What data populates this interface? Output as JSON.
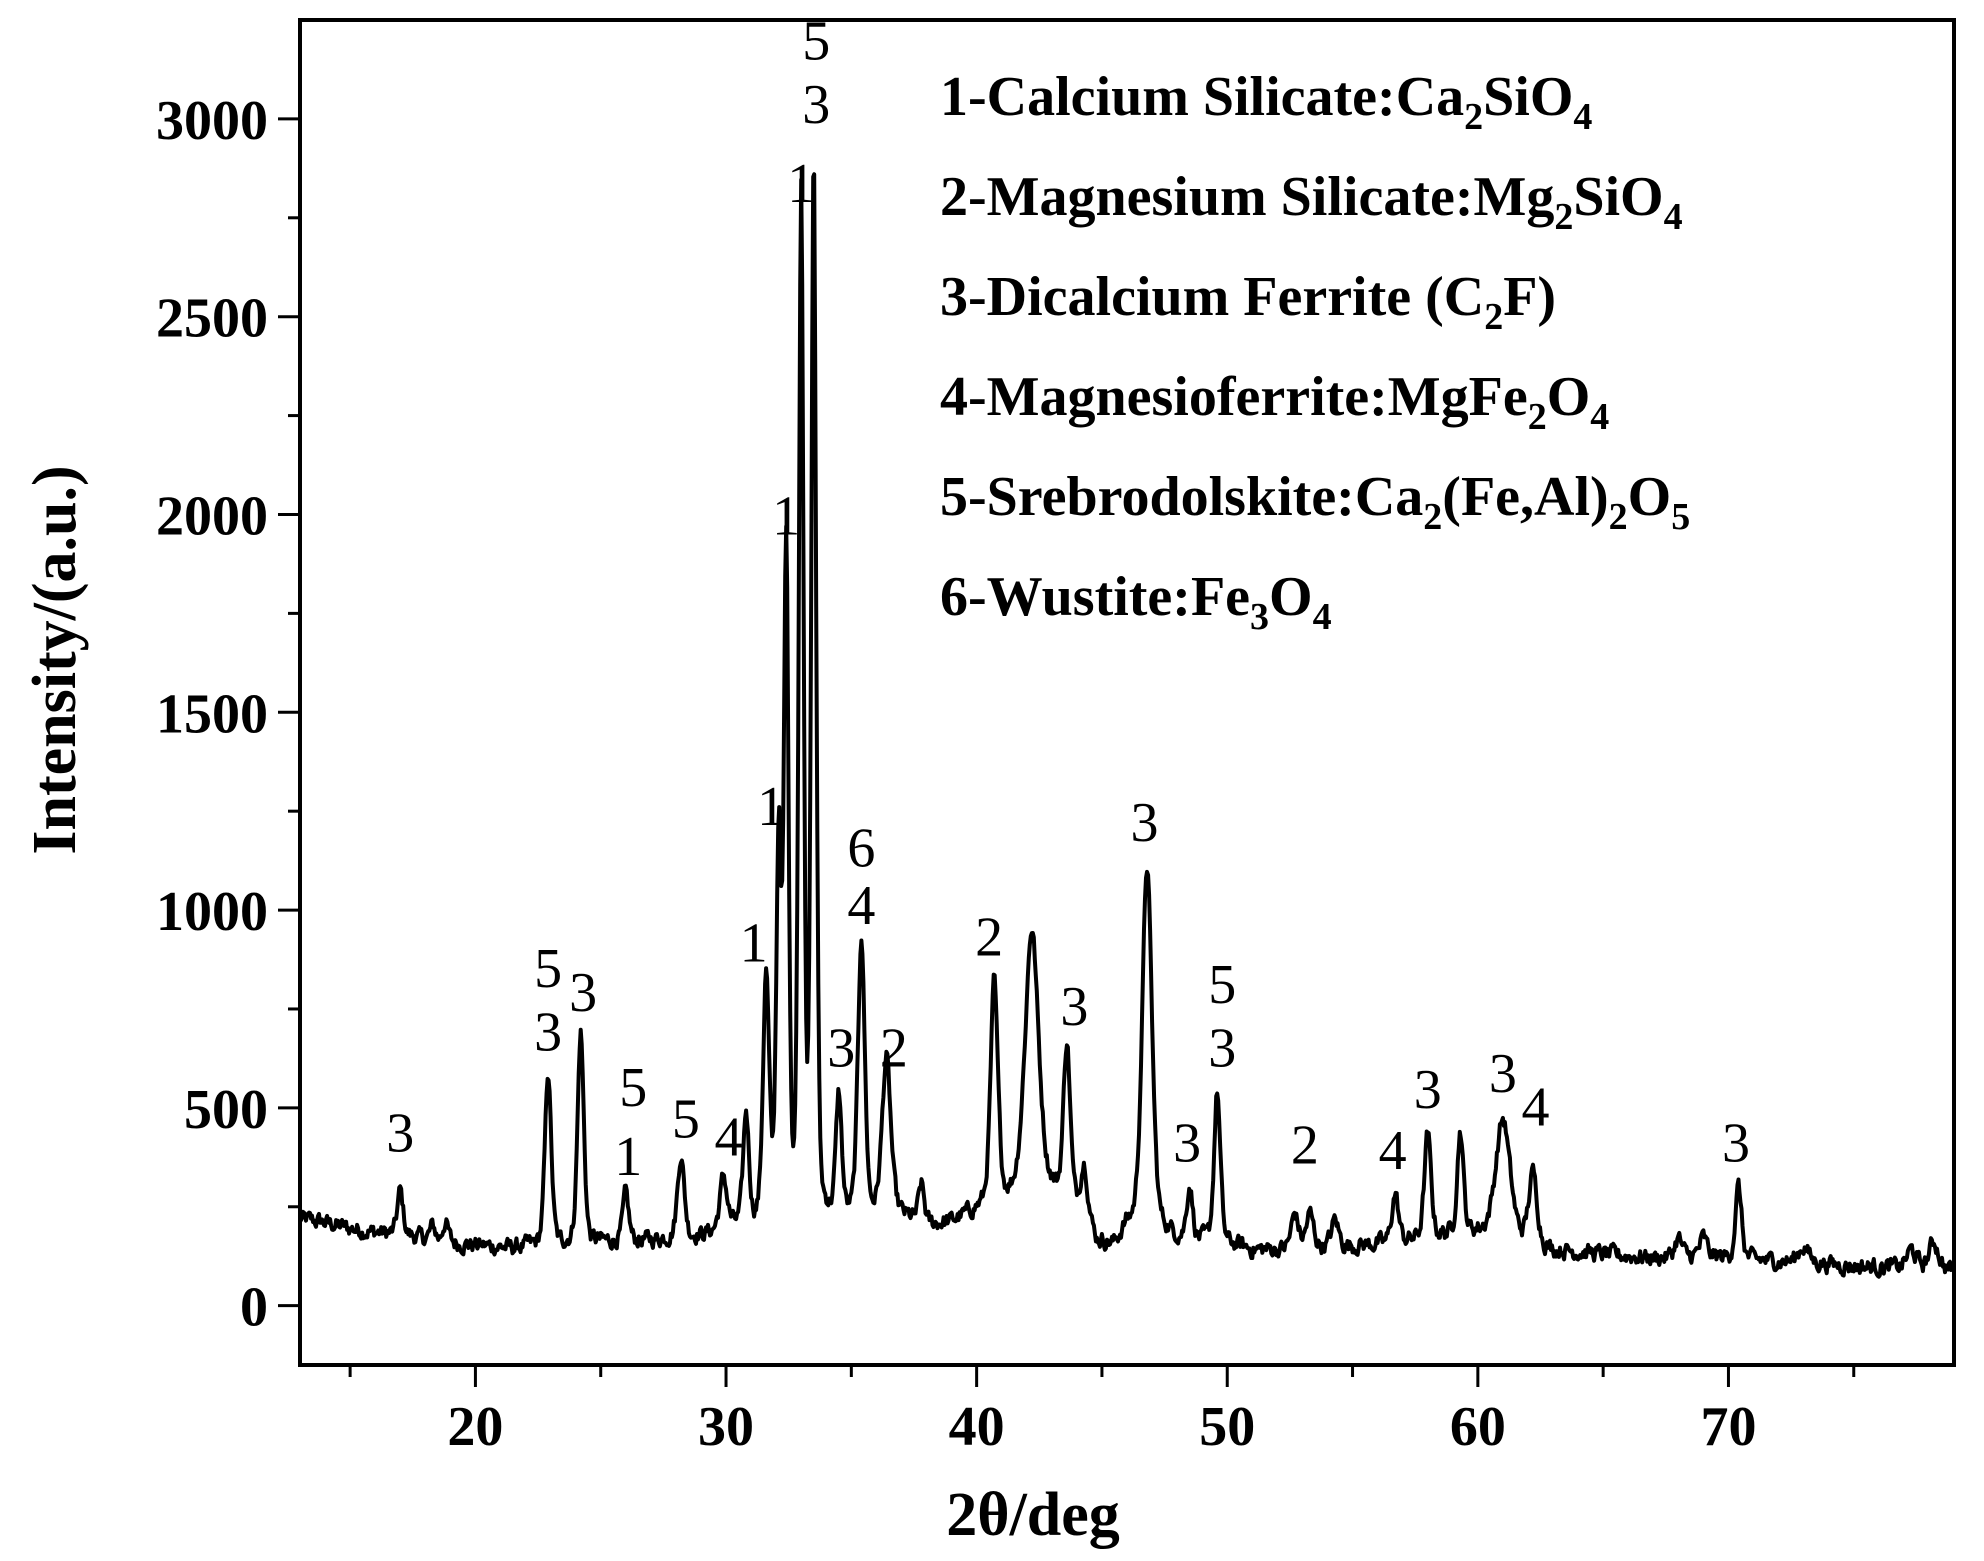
{
  "chart_data": {
    "type": "line",
    "xlabel": "2θ/deg",
    "ylabel": "Intensity/(a.u.)",
    "xlim": [
      13,
      79
    ],
    "ylim": [
      -150,
      3250
    ],
    "x_ticks": [
      20,
      30,
      40,
      50,
      60,
      70
    ],
    "y_ticks": [
      0,
      500,
      1000,
      1500,
      2000,
      2500,
      3000
    ],
    "grid": false,
    "legend_position": "top-right",
    "line_color": "#000000",
    "baseline_points": [
      [
        13.0,
        220
      ],
      [
        14.0,
        210
      ],
      [
        15.0,
        195
      ],
      [
        16.0,
        185
      ],
      [
        17.5,
        175
      ],
      [
        18.5,
        160
      ],
      [
        19.5,
        155
      ],
      [
        20.5,
        150
      ],
      [
        21.5,
        145
      ],
      [
        22.2,
        150
      ],
      [
        25.0,
        160
      ],
      [
        27.0,
        165
      ],
      [
        29.0,
        175
      ],
      [
        30.5,
        200
      ],
      [
        36.8,
        230
      ],
      [
        38.0,
        200
      ],
      [
        39.0,
        210
      ],
      [
        40.0,
        240
      ],
      [
        41.0,
        270
      ],
      [
        43.0,
        290
      ],
      [
        44.2,
        230
      ],
      [
        44.8,
        160
      ],
      [
        45.5,
        150
      ],
      [
        46.0,
        200
      ],
      [
        47.5,
        190
      ],
      [
        48.0,
        170
      ],
      [
        50.5,
        150
      ],
      [
        51.0,
        140
      ],
      [
        52.0,
        140
      ],
      [
        53.0,
        145
      ],
      [
        55.0,
        150
      ],
      [
        57.0,
        160
      ],
      [
        58.5,
        175
      ],
      [
        60.0,
        185
      ],
      [
        63.0,
        140
      ],
      [
        65.0,
        130
      ],
      [
        67.0,
        120
      ],
      [
        69.0,
        125
      ],
      [
        71.0,
        115
      ],
      [
        73.0,
        110
      ],
      [
        75.0,
        100
      ],
      [
        77.0,
        95
      ],
      [
        79.0,
        90
      ]
    ],
    "peaks": [
      {
        "x": 17.0,
        "y": 290,
        "w": 0.12
      },
      {
        "x": 18.3,
        "y": 200,
        "w": 0.12
      },
      {
        "x": 18.8,
        "y": 210,
        "w": 0.12
      },
      {
        "x": 22.9,
        "y": 590,
        "w": 0.13
      },
      {
        "x": 24.2,
        "y": 690,
        "w": 0.13
      },
      {
        "x": 26.0,
        "y": 280,
        "w": 0.12
      },
      {
        "x": 28.2,
        "y": 380,
        "w": 0.14
      },
      {
        "x": 29.9,
        "y": 320,
        "w": 0.15
      },
      {
        "x": 30.8,
        "y": 480,
        "w": 0.12
      },
      {
        "x": 31.6,
        "y": 820,
        "w": 0.13
      },
      {
        "x": 32.1,
        "y": 1160,
        "w": 0.1
      },
      {
        "x": 32.4,
        "y": 1900,
        "w": 0.1
      },
      {
        "x": 33.0,
        "y": 2790,
        "w": 0.1
      },
      {
        "x": 33.5,
        "y": 2880,
        "w": 0.1
      },
      {
        "x": 34.5,
        "y": 520,
        "w": 0.12
      },
      {
        "x": 35.4,
        "y": 930,
        "w": 0.14
      },
      {
        "x": 36.4,
        "y": 620,
        "w": 0.18
      },
      {
        "x": 37.8,
        "y": 300,
        "w": 0.12
      },
      {
        "x": 40.7,
        "y": 810,
        "w": 0.15
      },
      {
        "x": 42.2,
        "y": 950,
        "w": 0.28
      },
      {
        "x": 43.6,
        "y": 660,
        "w": 0.14
      },
      {
        "x": 44.3,
        "y": 350,
        "w": 0.15
      },
      {
        "x": 46.8,
        "y": 1110,
        "w": 0.2
      },
      {
        "x": 48.5,
        "y": 300,
        "w": 0.12
      },
      {
        "x": 49.6,
        "y": 540,
        "w": 0.13
      },
      {
        "x": 52.7,
        "y": 230,
        "w": 0.15
      },
      {
        "x": 53.3,
        "y": 230,
        "w": 0.15
      },
      {
        "x": 54.3,
        "y": 215,
        "w": 0.15
      },
      {
        "x": 56.7,
        "y": 280,
        "w": 0.14
      },
      {
        "x": 58.0,
        "y": 430,
        "w": 0.14
      },
      {
        "x": 59.3,
        "y": 440,
        "w": 0.13
      },
      {
        "x": 61.0,
        "y": 470,
        "w": 0.3
      },
      {
        "x": 62.2,
        "y": 330,
        "w": 0.18
      },
      {
        "x": 68.0,
        "y": 170,
        "w": 0.15
      },
      {
        "x": 69.0,
        "y": 170,
        "w": 0.15
      },
      {
        "x": 70.4,
        "y": 300,
        "w": 0.13
      },
      {
        "x": 73.0,
        "y": 150,
        "w": 0.2
      },
      {
        "x": 77.3,
        "y": 140,
        "w": 0.2
      },
      {
        "x": 78.2,
        "y": 160,
        "w": 0.2
      }
    ],
    "peak_labels": [
      {
        "text": "3",
        "x": 17.0,
        "y": 390
      },
      {
        "text": "5",
        "x": 22.9,
        "y": 805
      },
      {
        "text": "3",
        "x": 22.9,
        "y": 645
      },
      {
        "text": "3",
        "x": 24.3,
        "y": 745
      },
      {
        "text": "5",
        "x": 26.3,
        "y": 505
      },
      {
        "text": "1",
        "x": 26.1,
        "y": 330
      },
      {
        "text": "5",
        "x": 28.4,
        "y": 425
      },
      {
        "text": "4",
        "x": 30.1,
        "y": 380
      },
      {
        "text": "1",
        "x": 31.1,
        "y": 870
      },
      {
        "text": "1",
        "x": 31.8,
        "y": 1215
      },
      {
        "text": "1",
        "x": 32.4,
        "y": 1950
      },
      {
        "text": "1",
        "x": 33.0,
        "y": 2790
      },
      {
        "text": "3",
        "x": 33.6,
        "y": 2990
      },
      {
        "text": "5",
        "x": 33.6,
        "y": 3150
      },
      {
        "text": "3",
        "x": 34.6,
        "y": 605
      },
      {
        "text": "2",
        "x": 36.7,
        "y": 605
      },
      {
        "text": "6",
        "x": 35.4,
        "y": 1110
      },
      {
        "text": "4",
        "x": 35.4,
        "y": 965
      },
      {
        "text": "2",
        "x": 40.5,
        "y": 885
      },
      {
        "text": "3",
        "x": 43.9,
        "y": 710
      },
      {
        "text": "3",
        "x": 46.7,
        "y": 1175
      },
      {
        "text": "3",
        "x": 48.4,
        "y": 365
      },
      {
        "text": "5",
        "x": 49.8,
        "y": 765
      },
      {
        "text": "3",
        "x": 49.8,
        "y": 605
      },
      {
        "text": "2",
        "x": 53.1,
        "y": 360
      },
      {
        "text": "4",
        "x": 56.6,
        "y": 345
      },
      {
        "text": "3",
        "x": 58.0,
        "y": 500
      },
      {
        "text": "3",
        "x": 61.0,
        "y": 540
      },
      {
        "text": "4",
        "x": 62.3,
        "y": 455
      },
      {
        "text": "3",
        "x": 70.3,
        "y": 365
      }
    ],
    "legend": [
      {
        "prefix": "1-Calcium Silicate:",
        "formula": [
          "Ca",
          "2",
          "SiO",
          "4"
        ]
      },
      {
        "prefix": "2-Magnesium Silicate:",
        "formula": [
          "Mg",
          "2",
          "SiO",
          "4"
        ]
      },
      {
        "prefix": "3-Dicalcium Ferrite (",
        "formula": [
          "C",
          "2",
          "F)"
        ]
      },
      {
        "prefix": "4-Magnesioferrite:",
        "formula": [
          "MgFe",
          "2",
          "O",
          "4"
        ]
      },
      {
        "prefix": "5-Srebrodolskite:",
        "formula": [
          "Ca",
          "2",
          "(Fe,Al)",
          "2",
          "O",
          "5"
        ]
      },
      {
        "prefix": "6-Wustite:",
        "formula": [
          "Fe",
          "3",
          "O",
          "4"
        ]
      }
    ]
  }
}
